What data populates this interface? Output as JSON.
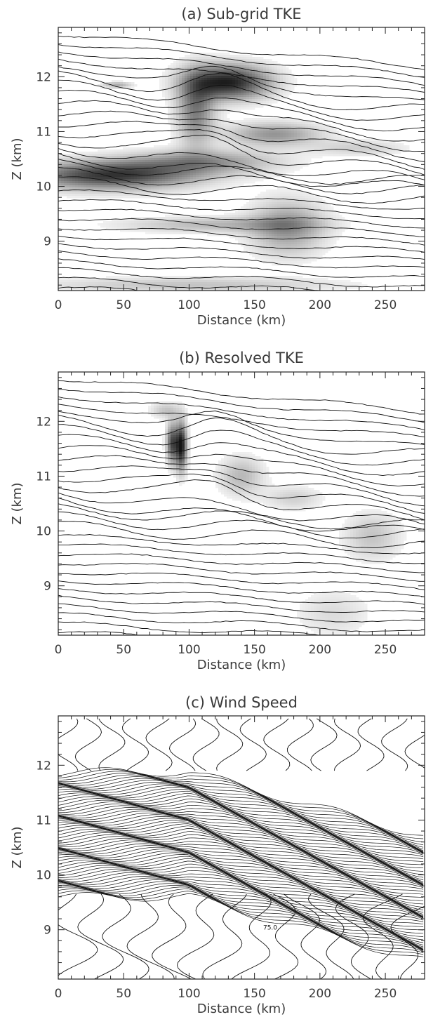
{
  "chart_data": [
    {
      "type": "contour",
      "title": "(a) Sub-grid TKE",
      "xlabel": "Distance (km)",
      "ylabel": "Z (km)",
      "xlim": [
        0,
        280
      ],
      "ylim": [
        8.1,
        12.9
      ],
      "xticks": [
        0,
        50,
        100,
        150,
        200,
        250
      ],
      "yticks": [
        9,
        10,
        11,
        12
      ],
      "shading": "grayscale",
      "shaded_features": [
        {
          "x": 130,
          "z": 11.9,
          "sx": 22,
          "sz": 0.22,
          "intensity": 0.95
        },
        {
          "x": 105,
          "z": 11.4,
          "sx": 10,
          "sz": 0.45,
          "intensity": 0.55
        },
        {
          "x": 40,
          "z": 10.2,
          "sx": 45,
          "sz": 0.18,
          "intensity": 0.85
        },
        {
          "x": 110,
          "z": 10.45,
          "sx": 40,
          "sz": 0.15,
          "intensity": 0.45
        },
        {
          "x": 165,
          "z": 10.95,
          "sx": 25,
          "sz": 0.15,
          "intensity": 0.45
        },
        {
          "x": 175,
          "z": 9.25,
          "sx": 20,
          "sz": 0.35,
          "intensity": 0.45
        },
        {
          "x": 120,
          "z": 9.3,
          "sx": 50,
          "sz": 0.1,
          "intensity": 0.3
        },
        {
          "x": 100,
          "z": 8.2,
          "sx": 80,
          "sz": 0.1,
          "intensity": 0.25
        },
        {
          "x": 230,
          "z": 10.7,
          "sx": 25,
          "sz": 0.1,
          "intensity": 0.2
        },
        {
          "x": 45,
          "z": 11.85,
          "sx": 8,
          "sz": 0.04,
          "intensity": 0.35
        }
      ]
    },
    {
      "type": "contour",
      "title": "(b) Resolved TKE",
      "xlabel": "Distance (km)",
      "ylabel": "Z (km)",
      "xlim": [
        0,
        280
      ],
      "ylim": [
        8.1,
        12.9
      ],
      "xticks": [
        0,
        50,
        100,
        150,
        200,
        250
      ],
      "yticks": [
        9,
        10,
        11,
        12
      ],
      "shading": "grayscale",
      "shaded_features": [
        {
          "x": 94,
          "z": 11.55,
          "sx": 3,
          "sz": 0.3,
          "intensity": 1.0
        },
        {
          "x": 87,
          "z": 11.6,
          "sx": 3,
          "sz": 0.25,
          "intensity": 0.75
        },
        {
          "x": 82,
          "z": 12.2,
          "sx": 8,
          "sz": 0.1,
          "intensity": 0.25
        },
        {
          "x": 140,
          "z": 11.0,
          "sx": 12,
          "sz": 0.25,
          "intensity": 0.3
        },
        {
          "x": 180,
          "z": 10.6,
          "sx": 15,
          "sz": 0.15,
          "intensity": 0.2
        },
        {
          "x": 240,
          "z": 9.9,
          "sx": 15,
          "sz": 0.3,
          "intensity": 0.25
        },
        {
          "x": 210,
          "z": 8.5,
          "sx": 20,
          "sz": 0.3,
          "intensity": 0.15
        }
      ]
    },
    {
      "type": "contour",
      "title": "(c) Wind Speed",
      "xlabel": "Distance (km)",
      "ylabel": "Z (km)",
      "xlim": [
        0,
        280
      ],
      "ylim": [
        8.1,
        12.9
      ],
      "xticks": [
        0,
        50,
        100,
        150,
        200,
        250
      ],
      "yticks": [
        9,
        10,
        11,
        12
      ],
      "contour_labels": [
        {
          "text": "75.0",
          "x": 162,
          "z": 9.04
        }
      ]
    }
  ]
}
